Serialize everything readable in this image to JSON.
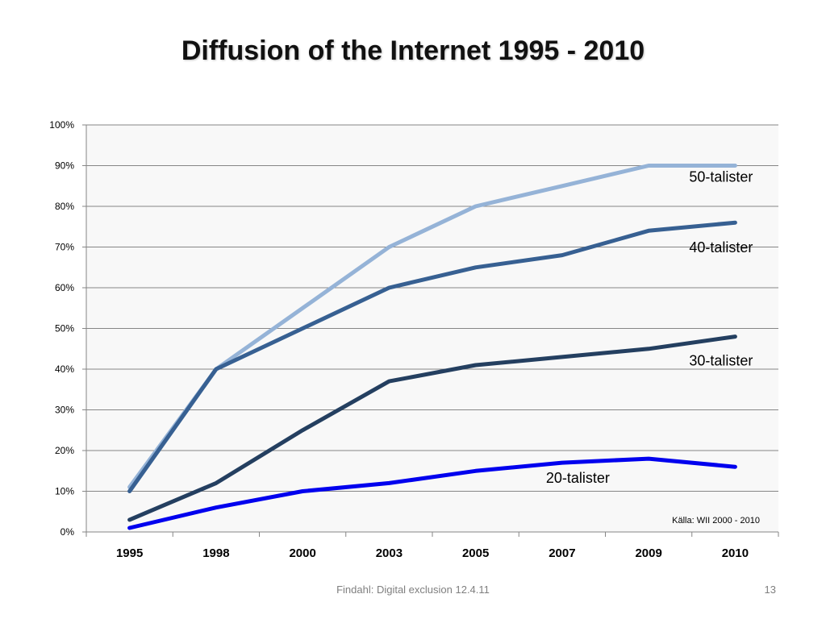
{
  "slide": {
    "title": "Diffusion of the Internet 1995 - 2010",
    "footer": "Findahl: Digital exclusion 12.4.11",
    "page_number": "13"
  },
  "chart_data": {
    "type": "line",
    "title": "",
    "xlabel": "",
    "ylabel": "",
    "categories": [
      "1995",
      "1998",
      "2000",
      "2003",
      "2005",
      "2007",
      "2009",
      "2010"
    ],
    "ylim": [
      0,
      100
    ],
    "y_ticks": [
      "0%",
      "10%",
      "20%",
      "30%",
      "40%",
      "50%",
      "60%",
      "70%",
      "80%",
      "90%",
      "100%"
    ],
    "grid": true,
    "series": [
      {
        "name": "50-talister",
        "color": "#95b3d7",
        "values": [
          11,
          40,
          55,
          70,
          80,
          85,
          90,
          90
        ]
      },
      {
        "name": "40-talister",
        "color": "#376092",
        "values": [
          10,
          40,
          50,
          60,
          65,
          68,
          74,
          76
        ]
      },
      {
        "name": "30-talister",
        "color": "#243f60",
        "values": [
          3,
          12,
          25,
          37,
          41,
          43,
          45,
          48
        ]
      },
      {
        "name": "20-talister",
        "color": "#0000ee",
        "values": [
          1,
          6,
          10,
          12,
          15,
          17,
          18,
          16
        ]
      }
    ],
    "source_note": "Källa: WII 2000 - 2010"
  }
}
